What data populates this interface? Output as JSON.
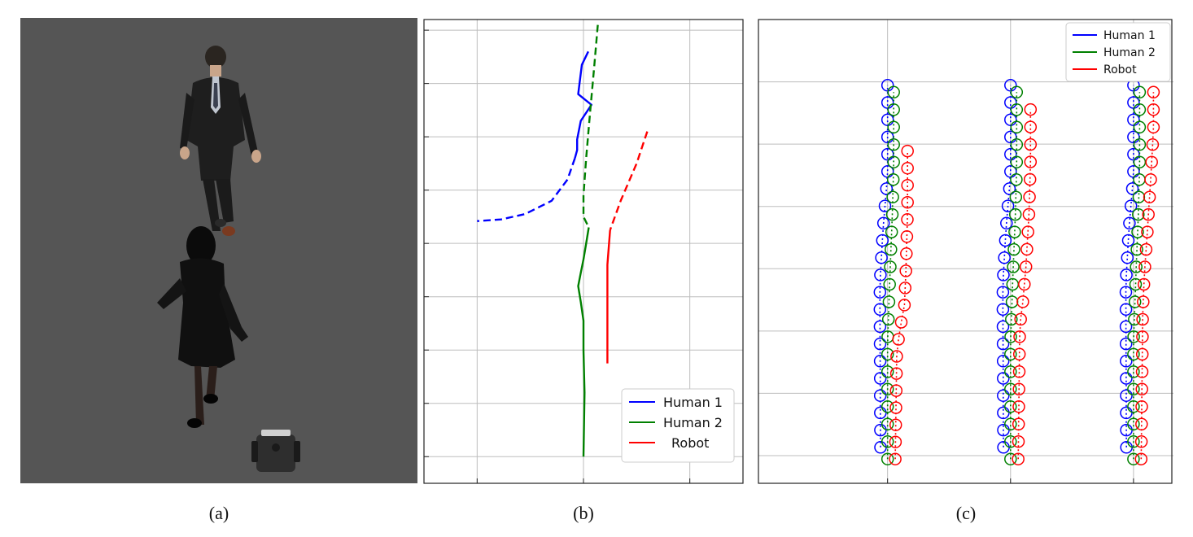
{
  "captions": [
    "(a)",
    "(b)",
    "(c)"
  ],
  "colors": {
    "human1": "#0000ff",
    "human2": "#008000",
    "robot": "#ff0000",
    "grid": "#bdbdbd",
    "sim_floor": "#555555"
  },
  "panel_a": {
    "scene": "simulation-top-down",
    "objects": [
      "human-1",
      "human-2",
      "robot"
    ]
  },
  "chart_data": [
    {
      "type": "line",
      "title": "",
      "xlabel": "",
      "ylabel": "",
      "grid": true,
      "legend_position": "bottom-right",
      "xlim": [
        0,
        6
      ],
      "ylim": [
        -0.5,
        8.2
      ],
      "legend": [
        {
          "label": "Human 1",
          "color": "#0000ff"
        },
        {
          "label": "Human 2",
          "color": "#008000"
        },
        {
          "label": "Robot",
          "color": "#ff0000"
        }
      ],
      "series": [
        {
          "name": "Human 1",
          "color": "#0000ff",
          "style": "solid",
          "points": [
            [
              3.09,
              7.6
            ],
            [
              2.97,
              7.35
            ],
            [
              2.9,
              6.8
            ],
            [
              3.15,
              6.6
            ],
            [
              2.95,
              6.3
            ],
            [
              2.88,
              5.95
            ],
            [
              2.88,
              5.75
            ],
            [
              2.84,
              5.6
            ]
          ]
        },
        {
          "name": "Human 1",
          "color": "#0000ff",
          "style": "dashed",
          "points": [
            [
              2.84,
              5.6
            ],
            [
              2.7,
              5.2
            ],
            [
              2.4,
              4.8
            ],
            [
              1.9,
              4.55
            ],
            [
              1.45,
              4.45
            ],
            [
              1.0,
              4.42
            ]
          ]
        },
        {
          "name": "Human 2",
          "color": "#008000",
          "style": "dashed",
          "points": [
            [
              3.27,
              8.1
            ],
            [
              3.2,
              7.3
            ],
            [
              3.12,
              6.4
            ],
            [
              3.05,
              5.6
            ],
            [
              3.0,
              4.9
            ],
            [
              3.0,
              4.5
            ],
            [
              3.1,
              4.3
            ]
          ]
        },
        {
          "name": "Human 2",
          "color": "#008000",
          "style": "solid",
          "points": [
            [
              3.1,
              4.3
            ],
            [
              3.05,
              4.0
            ],
            [
              3.0,
              3.7
            ],
            [
              2.95,
              3.45
            ],
            [
              2.9,
              3.2
            ],
            [
              2.95,
              2.9
            ],
            [
              3.0,
              2.55
            ],
            [
              3.0,
              2.0
            ],
            [
              3.02,
              1.2
            ],
            [
              3.0,
              0.0
            ]
          ]
        },
        {
          "name": "Robot",
          "color": "#ff0000",
          "style": "dashed",
          "points": [
            [
              4.2,
              6.1
            ],
            [
              4.0,
              5.5
            ],
            [
              3.7,
              4.8
            ],
            [
              3.5,
              4.25
            ]
          ]
        },
        {
          "name": "Robot",
          "color": "#ff0000",
          "style": "solid",
          "points": [
            [
              3.5,
              4.25
            ],
            [
              3.45,
              3.6
            ],
            [
              3.45,
              3.0
            ],
            [
              3.45,
              2.0
            ],
            [
              3.45,
              1.75
            ]
          ]
        }
      ]
    },
    {
      "type": "scatter",
      "title": "",
      "xlabel": "",
      "ylabel": "",
      "grid": true,
      "legend_position": "top-right",
      "xlim": [
        0,
        10
      ],
      "ylim": [
        0,
        6.7
      ],
      "legend": [
        {
          "label": "Human 1",
          "color": "#0000ff"
        },
        {
          "label": "Human 2",
          "color": "#008000"
        },
        {
          "label": "Robot",
          "color": "#ff0000"
        }
      ],
      "groups": [
        {
          "x0": 2.0,
          "human1": {
            "bottom": 0.52,
            "top": 5.75,
            "n": 22,
            "lateral": [
              [
                0,
                -0.23
              ],
              [
                0.45,
                -0.25
              ],
              [
                0.6,
                -0.15
              ],
              [
                0.75,
                0.0
              ],
              [
                1.0,
                0.0
              ]
            ]
          },
          "human2": {
            "bottom": 0.35,
            "top": 5.65,
            "n": 22,
            "lateral": [
              [
                0,
                0.0
              ],
              [
                0.3,
                0.0
              ],
              [
                0.32,
                0.0
              ],
              [
                0.55,
                0.1
              ],
              [
                0.65,
                0.15
              ],
              [
                0.8,
                0.2
              ],
              [
                1.0,
                0.2
              ]
            ]
          },
          "robot": {
            "bottom": 0.35,
            "top": 4.8,
            "n": 19,
            "lateral": [
              [
                0,
                0.2
              ],
              [
                0.35,
                0.25
              ],
              [
                0.42,
                0.35
              ],
              [
                0.5,
                0.5
              ],
              [
                0.62,
                0.55
              ],
              [
                0.8,
                0.6
              ],
              [
                1.0,
                0.6
              ]
            ]
          }
        },
        {
          "x0": 6.0,
          "human1": {
            "bottom": 0.52,
            "top": 5.75,
            "n": 22,
            "lateral": [
              [
                0,
                -0.23
              ],
              [
                0.45,
                -0.25
              ],
              [
                0.6,
                -0.15
              ],
              [
                0.75,
                0.0
              ],
              [
                1.0,
                0.0
              ]
            ]
          },
          "human2": {
            "bottom": 0.35,
            "top": 5.65,
            "n": 22,
            "lateral": [
              [
                0,
                0.0
              ],
              [
                0.32,
                0.0
              ],
              [
                0.55,
                0.1
              ],
              [
                0.65,
                0.15
              ],
              [
                0.8,
                0.2
              ],
              [
                1.0,
                0.2
              ]
            ]
          },
          "robot": {
            "bottom": 0.35,
            "top": 5.4,
            "n": 21,
            "lateral": [
              [
                0,
                0.2
              ],
              [
                0.38,
                0.25
              ],
              [
                0.45,
                0.35
              ],
              [
                0.55,
                0.45
              ],
              [
                0.7,
                0.55
              ],
              [
                0.85,
                0.6
              ],
              [
                1.0,
                0.6
              ]
            ]
          }
        },
        {
          "x0": 10.0,
          "human1": {
            "bottom": 0.52,
            "top": 5.75,
            "n": 22,
            "lateral": [
              [
                0,
                -0.23
              ],
              [
                0.45,
                -0.25
              ],
              [
                0.6,
                -0.15
              ],
              [
                0.75,
                0.0
              ],
              [
                1.0,
                0.0
              ]
            ]
          },
          "human2": {
            "bottom": 0.35,
            "top": 5.65,
            "n": 22,
            "lateral": [
              [
                0,
                0.0
              ],
              [
                0.32,
                0.0
              ],
              [
                0.55,
                0.1
              ],
              [
                0.65,
                0.15
              ],
              [
                0.8,
                0.2
              ],
              [
                1.0,
                0.2
              ]
            ]
          },
          "robot": {
            "bottom": 0.35,
            "top": 5.65,
            "n": 22,
            "lateral": [
              [
                0,
                0.2
              ],
              [
                0.4,
                0.25
              ],
              [
                0.5,
                0.3
              ],
              [
                0.62,
                0.4
              ],
              [
                0.75,
                0.5
              ],
              [
                0.9,
                0.6
              ],
              [
                1.0,
                0.6
              ]
            ]
          }
        }
      ]
    }
  ]
}
